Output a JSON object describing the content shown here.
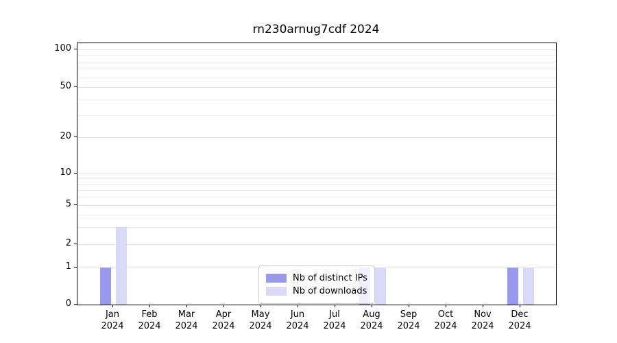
{
  "chart_data": {
    "type": "bar",
    "title": "rn230arnug7cdf 2024",
    "months": [
      "Jan",
      "Feb",
      "Mar",
      "Apr",
      "May",
      "Jun",
      "Jul",
      "Aug",
      "Sep",
      "Oct",
      "Nov",
      "Dec"
    ],
    "year": "2024",
    "series": [
      {
        "name": "Nb of distinct IPs",
        "color": "#9999ee",
        "values": [
          1,
          0,
          0,
          0,
          0,
          0,
          0,
          1,
          0,
          0,
          0,
          1
        ]
      },
      {
        "name": "Nb of downloads",
        "color": "#d9d9f8",
        "values": [
          3,
          0,
          0,
          0,
          0,
          0,
          0,
          1,
          0,
          0,
          0,
          1
        ]
      }
    ],
    "y_ticks": [
      100,
      50,
      20,
      10,
      5,
      2,
      1,
      0
    ],
    "y_scale": "log",
    "ylim_top": 100,
    "grid": true,
    "legend_position": "lower center",
    "axis_color": "#000000",
    "grid_color": "#ececec"
  }
}
